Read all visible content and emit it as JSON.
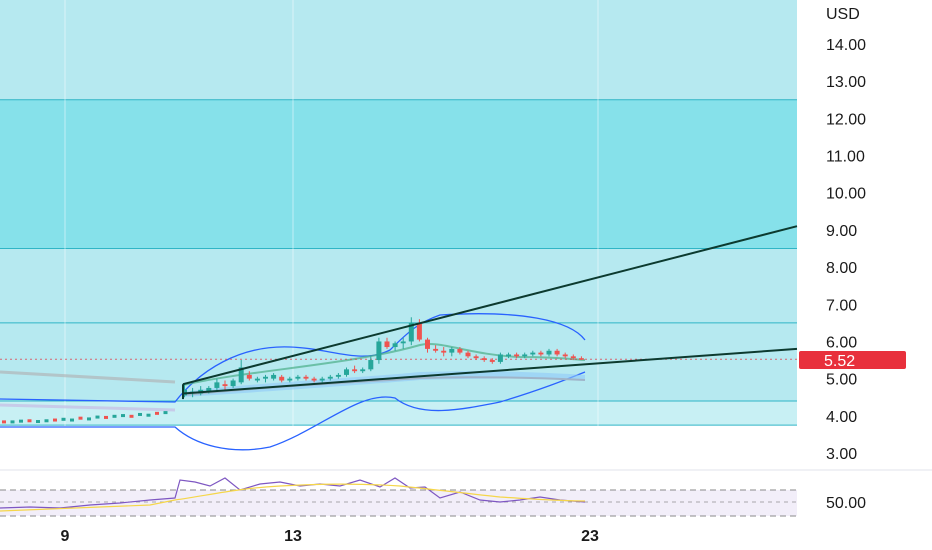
{
  "chart_data": [
    {
      "type": "candlestick",
      "currency_label": "USD",
      "y_ticks": [
        "14.00",
        "13.00",
        "12.00",
        "11.00",
        "10.00",
        "9.00",
        "8.00",
        "7.00",
        "6.00",
        "5.00",
        "4.00",
        "3.00"
      ],
      "y_tick_values": [
        14,
        13,
        12,
        11,
        10,
        9,
        8,
        7,
        6,
        5,
        4,
        3
      ],
      "ylim": [
        2.5,
        15
      ],
      "x_ticks": [
        "9",
        "13",
        "23"
      ],
      "last_price": "5.52",
      "last_price_value": 5.52,
      "zones": [
        {
          "from": 3.75,
          "to": 4.4,
          "color": "#c8f0f4"
        },
        {
          "from": 4.4,
          "to": 6.5,
          "color": "#b6e9f0"
        },
        {
          "from": 6.5,
          "to": 8.5,
          "color": "#b6e9f0"
        },
        {
          "from": 8.5,
          "to": 12.5,
          "color": "#86e1ea"
        },
        {
          "from": 12.5,
          "to": 16.0,
          "color": "#b6e9f0"
        }
      ],
      "trendlines": [
        {
          "name": "upper",
          "points": [
            [
              4.85,
              183
            ],
            [
              9.1,
              797
            ]
          ]
        },
        {
          "name": "lower",
          "points": [
            [
              4.6,
              183
            ],
            [
              5.8,
              797
            ]
          ]
        }
      ],
      "candles": [
        [
          4.55,
          4.85,
          4.5,
          4.7
        ],
        [
          4.6,
          4.75,
          4.5,
          4.65
        ],
        [
          4.6,
          4.8,
          4.55,
          4.7
        ],
        [
          4.65,
          4.8,
          4.6,
          4.75
        ],
        [
          4.75,
          5.0,
          4.65,
          4.9
        ],
        [
          4.85,
          4.95,
          4.7,
          4.8
        ],
        [
          4.8,
          5.0,
          4.75,
          4.95
        ],
        [
          4.9,
          5.5,
          4.85,
          5.3
        ],
        [
          5.1,
          5.2,
          4.95,
          5.0
        ],
        [
          4.95,
          5.05,
          4.9,
          5.0
        ],
        [
          5.0,
          5.1,
          4.9,
          5.05
        ],
        [
          5.0,
          5.15,
          4.95,
          5.1
        ],
        [
          5.05,
          5.1,
          4.9,
          4.95
        ],
        [
          4.95,
          5.05,
          4.9,
          5.0
        ],
        [
          5.0,
          5.1,
          4.95,
          5.05
        ],
        [
          5.05,
          5.1,
          4.95,
          5.0
        ],
        [
          5.0,
          5.05,
          4.9,
          4.95
        ],
        [
          4.95,
          5.05,
          4.9,
          5.0
        ],
        [
          5.0,
          5.1,
          4.95,
          5.05
        ],
        [
          5.05,
          5.15,
          5.0,
          5.1
        ],
        [
          5.1,
          5.3,
          5.05,
          5.25
        ],
        [
          5.25,
          5.35,
          5.15,
          5.2
        ],
        [
          5.2,
          5.3,
          5.15,
          5.25
        ],
        [
          5.25,
          5.6,
          5.2,
          5.5
        ],
        [
          5.5,
          6.1,
          5.4,
          6.0
        ],
        [
          6.0,
          6.1,
          5.8,
          5.85
        ],
        [
          5.85,
          6.0,
          5.75,
          5.95
        ],
        [
          5.95,
          6.1,
          5.8,
          6.0
        ],
        [
          6.0,
          6.65,
          5.9,
          6.5
        ],
        [
          6.5,
          6.6,
          6.0,
          6.05
        ],
        [
          6.05,
          6.1,
          5.7,
          5.8
        ],
        [
          5.8,
          5.9,
          5.7,
          5.75
        ],
        [
          5.75,
          5.85,
          5.6,
          5.7
        ],
        [
          5.7,
          5.85,
          5.6,
          5.8
        ],
        [
          5.8,
          5.85,
          5.65,
          5.7
        ],
        [
          5.7,
          5.75,
          5.55,
          5.6
        ],
        [
          5.6,
          5.65,
          5.5,
          5.55
        ],
        [
          5.55,
          5.6,
          5.45,
          5.5
        ],
        [
          5.5,
          5.55,
          5.4,
          5.45
        ],
        [
          5.45,
          5.7,
          5.4,
          5.65
        ],
        [
          5.6,
          5.7,
          5.55,
          5.65
        ],
        [
          5.65,
          5.7,
          5.55,
          5.6
        ],
        [
          5.6,
          5.7,
          5.55,
          5.65
        ],
        [
          5.65,
          5.75,
          5.6,
          5.7
        ],
        [
          5.7,
          5.75,
          5.6,
          5.65
        ],
        [
          5.65,
          5.8,
          5.6,
          5.75
        ],
        [
          5.75,
          5.8,
          5.6,
          5.65
        ],
        [
          5.65,
          5.7,
          5.55,
          5.6
        ],
        [
          5.6,
          5.65,
          5.5,
          5.55
        ],
        [
          5.55,
          5.6,
          5.5,
          5.52
        ]
      ],
      "pre_candles": [
        3.85,
        3.85,
        3.87,
        3.88,
        3.86,
        3.88,
        3.9,
        3.92,
        3.9,
        3.95,
        3.93,
        3.98,
        3.97,
        4.0,
        4.02,
        4.0,
        4.05,
        4.03,
        4.08,
        4.1
      ],
      "indicator": {
        "level_label": "50.00",
        "level_value": 50
      },
      "colors": {
        "up": "#26a69a",
        "down": "#ef5350",
        "last_price_badge": "#e8303c",
        "band": "#2962ff",
        "trend": "#0c3a2f",
        "rsi": "#7e57c2",
        "rsi_ma": "#f5d64a"
      }
    }
  ]
}
